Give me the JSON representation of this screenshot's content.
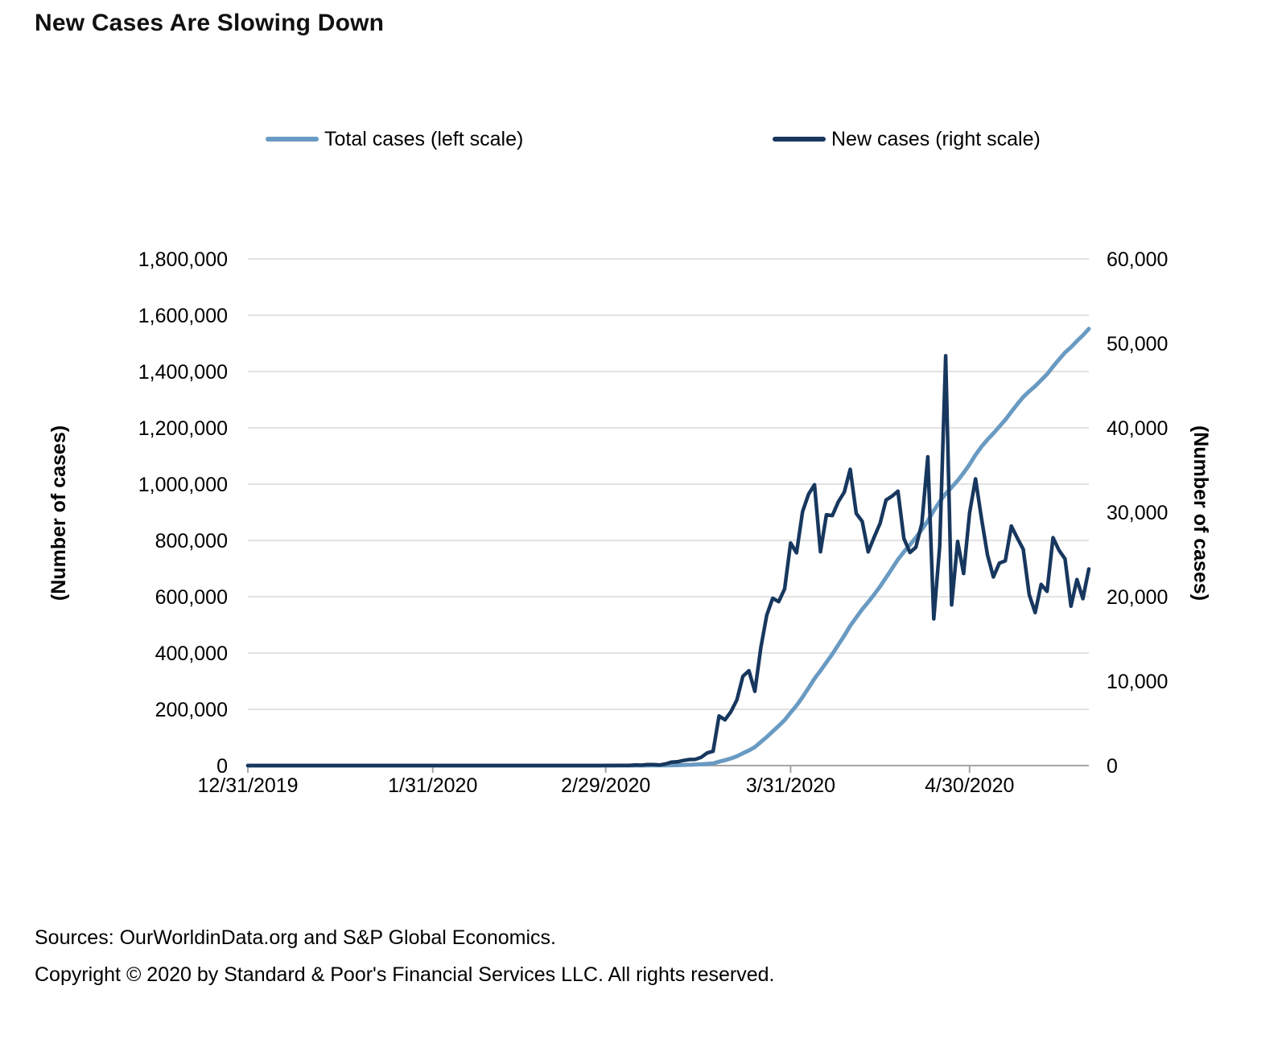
{
  "title": "New Cases Are Slowing Down",
  "legend": [
    {
      "label": "Total cases (left scale)",
      "color": "#699ac2"
    },
    {
      "label": "New cases (right scale)",
      "color": "#17375e"
    }
  ],
  "footer": {
    "sources": "Sources: OurWorldinData.org and S&P Global Economics.",
    "copyright": "Copyright © 2020 by Standard & Poor's Financial Services LLC. All rights reserved."
  },
  "chart_data": {
    "type": "line",
    "x_start_date": "12/31/2019",
    "x_end_date": "5/20/2020",
    "x_unit": "day",
    "grid": true,
    "grid_color": "#d9d9d9",
    "axis_color": "#a6a6a6",
    "x_ticks": [
      {
        "label": "12/31/2019",
        "day": 0
      },
      {
        "label": "1/31/2020",
        "day": 31
      },
      {
        "label": "2/29/2020",
        "day": 60
      },
      {
        "label": "3/31/2020",
        "day": 91
      },
      {
        "label": "4/30/2020",
        "day": 121
      }
    ],
    "left_axis": {
      "title": "(Number of cases)",
      "min": 0,
      "max": 1800000,
      "step": 200000,
      "tick_labels": [
        "0",
        "200,000",
        "400,000",
        "600,000",
        "800,000",
        "1,000,000",
        "1,200,000",
        "1,400,000",
        "1,600,000",
        "1,800,000"
      ]
    },
    "right_axis": {
      "title": "(Number of cases)",
      "min": 0,
      "max": 60000,
      "step": 10000,
      "tick_labels": [
        "0",
        "10,000",
        "20,000",
        "30,000",
        "40,000",
        "50,000",
        "60,000"
      ]
    },
    "series": [
      {
        "id": "total_cases",
        "name": "Total cases (left scale)",
        "axis": "left",
        "color": "#699ac2",
        "stroke_width": 5,
        "values": [
          0,
          0,
          0,
          0,
          0,
          0,
          0,
          0,
          0,
          0,
          0,
          0,
          0,
          0,
          0,
          0,
          0,
          0,
          0,
          0,
          0,
          1,
          1,
          1,
          2,
          2,
          5,
          5,
          5,
          5,
          6,
          7,
          8,
          8,
          11,
          11,
          11,
          11,
          11,
          11,
          11,
          11,
          12,
          12,
          13,
          13,
          13,
          13,
          13,
          13,
          13,
          13,
          15,
          15,
          15,
          15,
          15,
          15,
          16,
          16,
          24,
          30,
          53,
          73,
          104,
          174,
          222,
          337,
          451,
          519,
          711,
          1109,
          1561,
          2157,
          2870,
          3609,
          4588,
          6087,
          7786,
          13663,
          19086,
          25475,
          33262,
          43833,
          53726,
          65764,
          83822,
          101643,
          121464,
          140872,
          161793,
          188158,
          213358,
          243439,
          275572,
          308836,
          336898,
          366600,
          396209,
          429038,
          461423,
          496521,
          526382,
          555299,
          580605,
          607656,
          636336,
          667787,
          699692,
          732183,
          759072,
          784312,
          810170,
          838845,
          869158,
          905344,
          938140,
          965771,
          988437,
          1012569,
          1039895,
          1069812,
          1103767,
          1133055,
          1158026,
          1180361,
          1204337,
          1228589,
          1256958,
          1283915,
          1309527,
          1329785,
          1347902,
          1369362,
          1390392,
          1417384,
          1442892,
          1467379,
          1486252,
          1508294,
          1528554,
          1551839
        ]
      },
      {
        "id": "new_cases",
        "name": "New cases (right scale)",
        "axis": "right",
        "color": "#17375e",
        "stroke_width": 4.5,
        "values": [
          0,
          0,
          0,
          0,
          0,
          0,
          0,
          0,
          0,
          0,
          0,
          0,
          0,
          0,
          0,
          0,
          0,
          0,
          0,
          0,
          0,
          1,
          0,
          0,
          1,
          0,
          3,
          0,
          0,
          0,
          1,
          1,
          1,
          0,
          3,
          0,
          0,
          0,
          0,
          0,
          0,
          0,
          1,
          0,
          1,
          0,
          0,
          0,
          0,
          0,
          0,
          0,
          2,
          0,
          0,
          0,
          0,
          0,
          1,
          0,
          8,
          6,
          23,
          20,
          31,
          70,
          48,
          115,
          114,
          68,
          192,
          398,
          452,
          596,
          713,
          739,
          979,
          1499,
          1699,
          5877,
          5423,
          6389,
          7787,
          10571,
          11236,
          8789,
          13963,
          17821,
          19821,
          19408,
          20921,
          26365,
          25200,
          30081,
          32133,
          33264,
          25316,
          29702,
          29609,
          31240,
          32385,
          35098,
          29861,
          28917,
          25306,
          27051,
          28680,
          31451,
          31905,
          32491,
          26889,
          25240,
          25858,
          28675,
          36576,
          17375,
          25985,
          48529,
          19030,
          26543,
          22742,
          29917,
          33955,
          29288,
          24971,
          22335,
          23976,
          24252,
          28369,
          26957,
          25612,
          20258,
          18117,
          21460,
          20630,
          26992,
          25508,
          24487,
          18873,
          22042,
          19760,
          23285
        ]
      }
    ]
  }
}
